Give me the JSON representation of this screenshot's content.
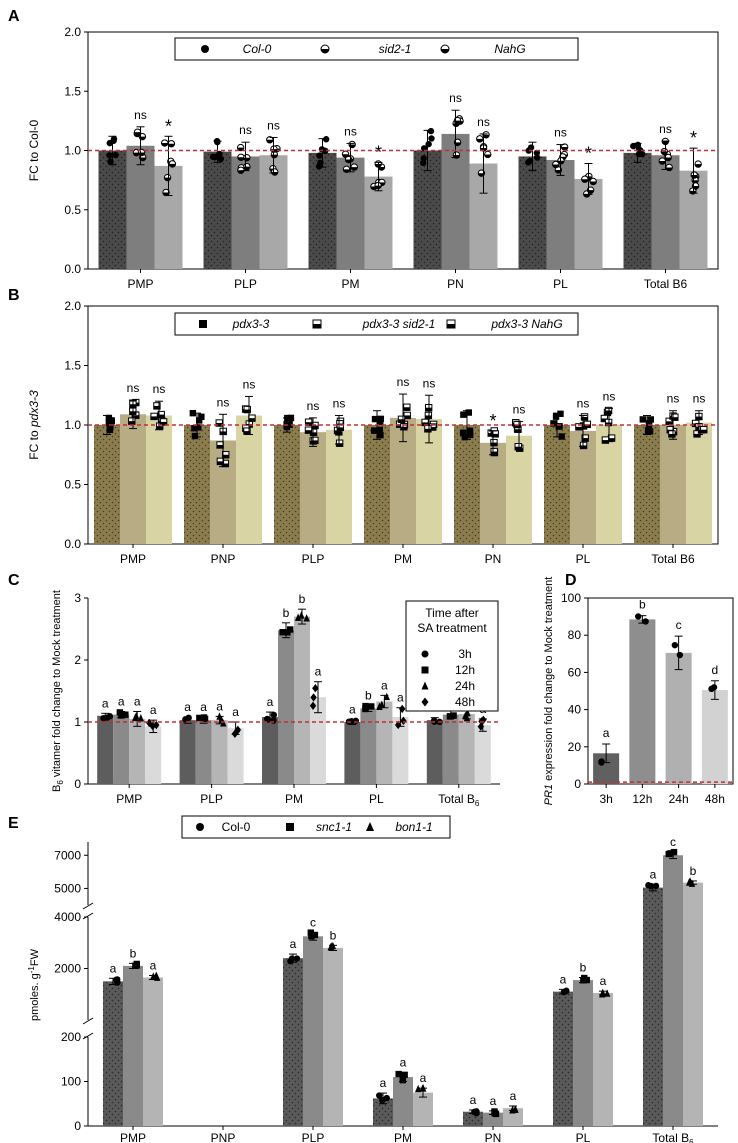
{
  "colors": {
    "A": [
      "#4a4a4a",
      "#7e7e7e",
      "#a8a8a8"
    ],
    "B": [
      "#8b7d4e",
      "#b8ac84",
      "#d8d4a4"
    ],
    "C": [
      "#5d5d5d",
      "#8a8a8a",
      "#b5b5b5",
      "#dadada"
    ],
    "D": [
      "#606060",
      "#8e8e8e",
      "#b0b0b0",
      "#d2d2d2"
    ],
    "E": [
      "#5a5a5a",
      "#8a8a8a",
      "#b4b4b4"
    ],
    "refline": "#c03030"
  },
  "chart_data": [
    {
      "panel": "A",
      "type": "bar",
      "ylabel": "FC to Col-0",
      "ylim": [
        0,
        2.0
      ],
      "yticks": [
        "0.0",
        "0.5",
        "1.0",
        "1.5",
        "2.0"
      ],
      "refline": 1.0,
      "legend": [
        "Col-0",
        "sid2-1",
        "NahG"
      ],
      "categories": [
        "PMP",
        "PLP",
        "PM",
        "PN",
        "PL",
        "Total B6"
      ],
      "series": [
        {
          "name": "Col-0",
          "values": [
            1.0,
            0.99,
            0.98,
            1.0,
            0.95,
            0.98
          ],
          "err": [
            0.12,
            0.09,
            0.12,
            0.17,
            0.12,
            0.08
          ]
        },
        {
          "name": "sid2-1",
          "values": [
            1.04,
            0.95,
            0.94,
            1.14,
            0.92,
            0.96
          ],
          "err": [
            0.16,
            0.12,
            0.12,
            0.2,
            0.13,
            0.12
          ]
        },
        {
          "name": "NahG",
          "values": [
            0.87,
            0.96,
            0.78,
            0.89,
            0.76,
            0.83
          ],
          "err": [
            0.25,
            0.15,
            0.12,
            0.25,
            0.13,
            0.19
          ]
        }
      ],
      "annotations": [
        [
          "",
          "ns",
          "*"
        ],
        [
          "",
          "ns",
          "ns"
        ],
        [
          "",
          "ns",
          "*"
        ],
        [
          "",
          "ns",
          "ns"
        ],
        [
          "",
          "ns",
          "*"
        ],
        [
          "",
          "ns",
          "*"
        ]
      ]
    },
    {
      "panel": "B",
      "type": "bar",
      "ylabel": "FC to pdx3-3",
      "ylim": [
        0,
        2.0
      ],
      "yticks": [
        "0.0",
        "0.5",
        "1.0",
        "1.5",
        "2.0"
      ],
      "refline": 1.0,
      "legend": [
        "pdx3-3",
        "pdx3-3 sid2-1",
        "pdx3-3 NahG"
      ],
      "categories": [
        "PMP",
        "PNP",
        "PLP",
        "PM",
        "PN",
        "PL",
        "Total B6"
      ],
      "series": [
        {
          "name": "pdx3-3",
          "values": [
            1.0,
            1.0,
            1.0,
            1.0,
            1.0,
            1.0,
            1.0
          ],
          "err": [
            0.08,
            0.1,
            0.06,
            0.12,
            0.12,
            0.1,
            0.08
          ]
        },
        {
          "name": "pdx3-3 sid2-1",
          "values": [
            1.09,
            0.87,
            0.94,
            1.06,
            0.85,
            0.95,
            1.0
          ],
          "err": [
            0.12,
            0.22,
            0.12,
            0.2,
            0.1,
            0.13,
            0.12
          ]
        },
        {
          "name": "pdx3-3 NahG",
          "values": [
            1.08,
            1.08,
            0.96,
            1.05,
            0.91,
            1.0,
            1.02
          ],
          "err": [
            0.12,
            0.16,
            0.12,
            0.2,
            0.12,
            0.14,
            0.1
          ]
        }
      ],
      "annotations": [
        [
          "",
          "ns",
          "ns"
        ],
        [
          "",
          "ns",
          "ns"
        ],
        [
          "",
          "ns",
          "ns"
        ],
        [
          "",
          "ns",
          "ns"
        ],
        [
          "",
          "*",
          "ns"
        ],
        [
          "",
          "ns",
          "ns"
        ],
        [
          "",
          "ns",
          "ns"
        ]
      ]
    },
    {
      "panel": "C",
      "type": "bar",
      "ylabel_main": "B",
      "ylabel_sub": "6",
      "ylabel_rest": " vitamer fold change to Mock treatment",
      "ylim": [
        0,
        3
      ],
      "yticks": [
        "0",
        "1",
        "2",
        "3"
      ],
      "refline": 1,
      "legend_title": [
        "Time after",
        "SA treatment"
      ],
      "legend": [
        "3h",
        "12h",
        "24h",
        "48h"
      ],
      "categories": [
        "PMP",
        "PLP",
        "PM",
        "PL",
        "Total B"
      ],
      "categories_sub": [
        "",
        "",
        "",
        "",
        "6"
      ],
      "series": [
        {
          "name": "3h",
          "values": [
            1.1,
            1.03,
            1.08,
            1.0,
            1.03
          ],
          "err": [
            0.04,
            0.05,
            0.08,
            0.04,
            0.04
          ]
        },
        {
          "name": "12h",
          "values": [
            1.12,
            1.03,
            2.48,
            1.22,
            1.12
          ],
          "err": [
            0.05,
            0.05,
            0.12,
            0.05,
            0.06
          ]
        },
        {
          "name": "24h",
          "values": [
            1.05,
            1.03,
            2.7,
            1.33,
            1.13
          ],
          "err": [
            0.12,
            0.06,
            0.12,
            0.1,
            0.08
          ]
        },
        {
          "name": "48h",
          "values": [
            0.93,
            0.9,
            1.4,
            1.08,
            0.95
          ],
          "err": [
            0.1,
            0.1,
            0.25,
            0.15,
            0.1
          ]
        }
      ],
      "annotations": [
        [
          "a",
          "a",
          "a",
          "a"
        ],
        [
          "a",
          "a",
          "a",
          "a"
        ],
        [
          "a",
          "b",
          "b",
          "a"
        ],
        [
          "a",
          "b",
          "a",
          "a"
        ],
        [
          "a",
          "a",
          "a",
          "a"
        ]
      ]
    },
    {
      "panel": "D",
      "type": "bar",
      "ylabel_italic": "PR1",
      "ylabel_rest": " expression fold change to Mock treatment",
      "ylim": [
        0,
        100
      ],
      "yticks": [
        "0",
        "20",
        "40",
        "60",
        "80",
        "100"
      ],
      "refline": 1,
      "categories": [
        "3h",
        "12h",
        "24h",
        "48h"
      ],
      "values": [
        16.5,
        88.5,
        70.5,
        50.5
      ],
      "err": [
        5,
        2,
        9,
        5
      ],
      "annotations": [
        "a",
        "b",
        "c",
        "d"
      ]
    },
    {
      "panel": "E",
      "type": "bar",
      "ylabel": "pmoles. g",
      "ylabel_sup": "-1",
      "ylabel_rest": "FW",
      "segments": [
        {
          "range": [
            0,
            200
          ],
          "ticks": [
            "0",
            "100",
            "200"
          ]
        },
        {
          "range": [
            0,
            4000
          ],
          "ticks": [
            "2000",
            "4000"
          ]
        },
        {
          "range": [
            4000,
            7800
          ],
          "ticks": [
            "5000",
            "7000"
          ]
        }
      ],
      "legend": [
        "Col-0",
        "snc1-1",
        "bon1-1"
      ],
      "categories": [
        "PMP",
        "PNP",
        "PLP",
        "PM",
        "PN",
        "PL",
        "Total B"
      ],
      "categories_sub": [
        "",
        "",
        "",
        "",
        "",
        "",
        "6"
      ],
      "series": [
        {
          "name": "Col-0",
          "values": [
            1500,
            0,
            2400,
            62,
            32,
            1100,
            5050
          ],
          "err": [
            120,
            0,
            160,
            12,
            4,
            90,
            200
          ]
        },
        {
          "name": "snc1-1",
          "values": [
            2100,
            0,
            3250,
            110,
            30,
            1550,
            7000
          ],
          "err": [
            100,
            0,
            150,
            10,
            4,
            100,
            200
          ]
        },
        {
          "name": "bon1-1",
          "values": [
            1650,
            0,
            2800,
            75,
            40,
            1050,
            5350
          ],
          "err": [
            80,
            0,
            100,
            10,
            5,
            70,
            100
          ]
        }
      ],
      "annotations": [
        [
          "a",
          "b",
          "a"
        ],
        [
          "",
          "",
          ""
        ],
        [
          "a",
          "c",
          "b"
        ],
        [
          "a",
          "a",
          "a"
        ],
        [
          "a",
          "a",
          "a"
        ],
        [
          "a",
          "b",
          "a"
        ],
        [
          "a",
          "c",
          "b"
        ]
      ]
    }
  ]
}
